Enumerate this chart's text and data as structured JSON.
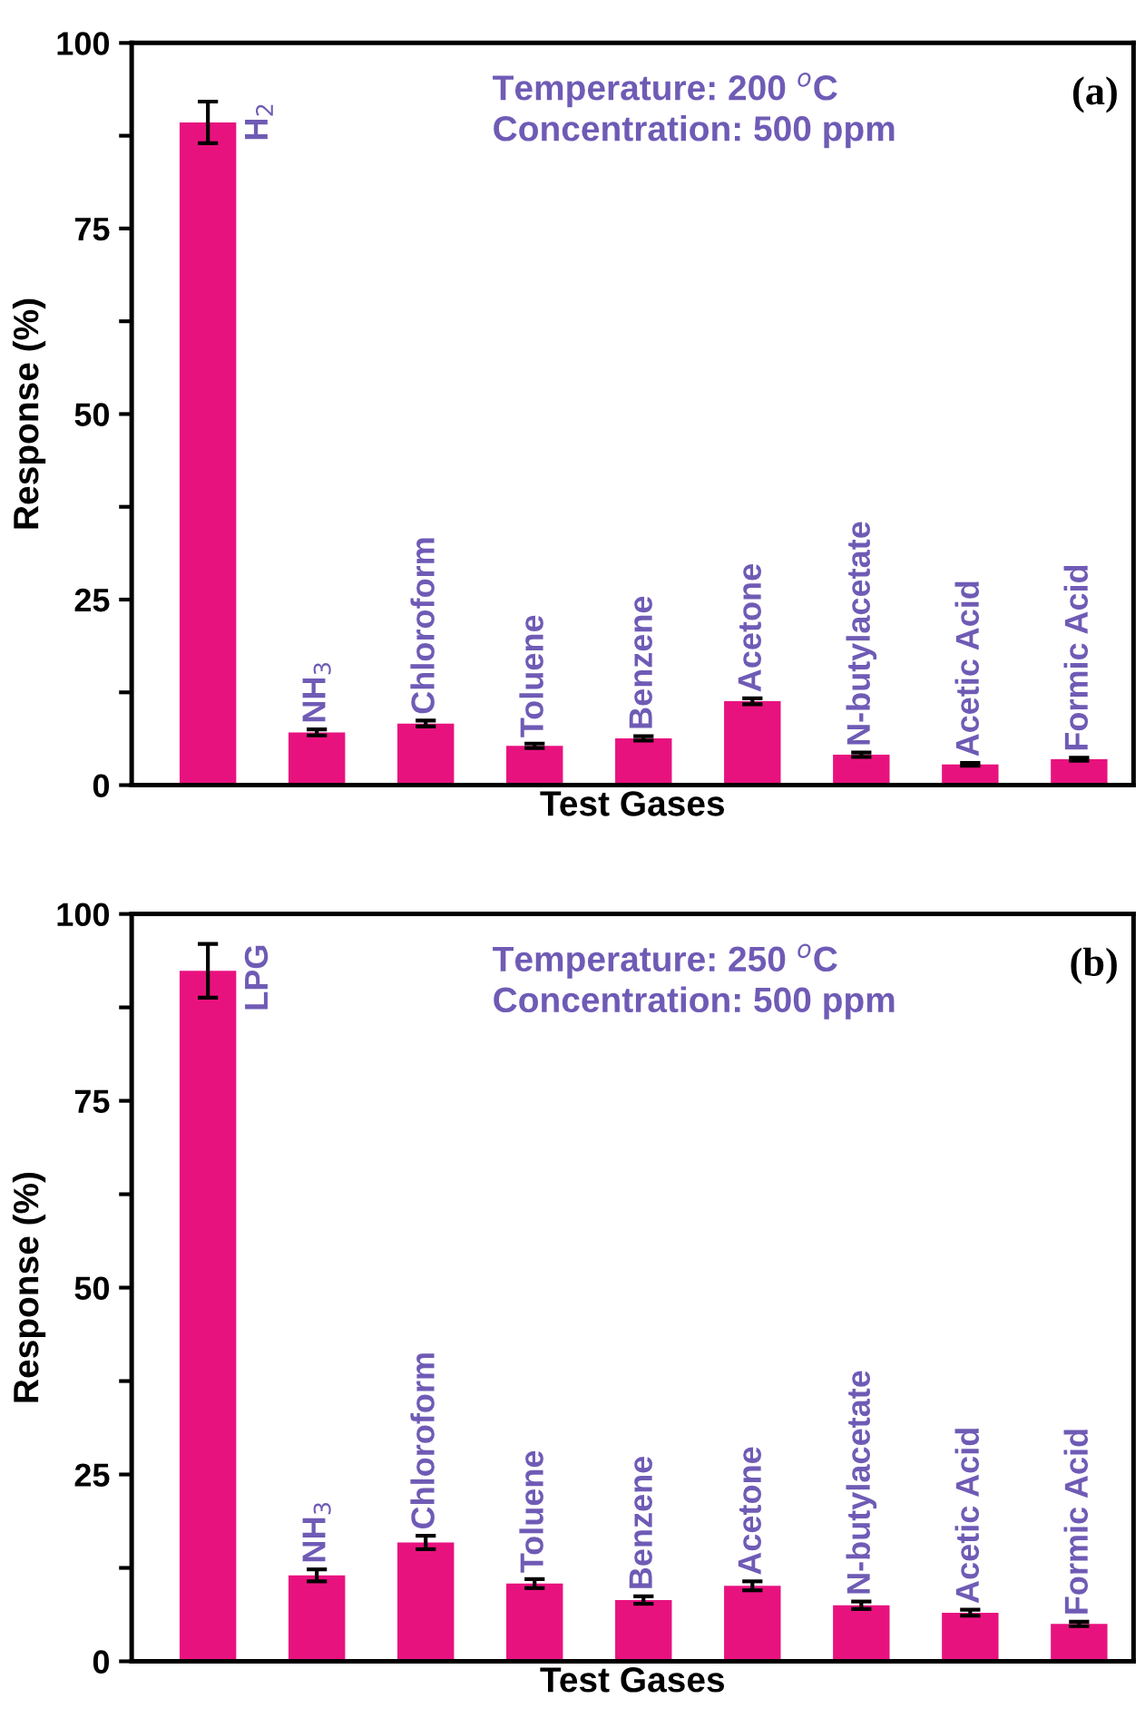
{
  "chart_data": [
    {
      "type": "bar",
      "xlabel": "Test Gases",
      "ylabel": "Response (%)",
      "categories": [
        "H$_{2}$",
        "NH$_{3}$",
        "Chloroform",
        "Toluene",
        "Benzene",
        "Acetone",
        "N-butylacetate",
        "Acetic Acid",
        "Formic Acid"
      ],
      "values": [
        89.3,
        7.1,
        8.3,
        5.3,
        6.3,
        11.3,
        4.1,
        2.8,
        3.5
      ],
      "errors": [
        2.8,
        0.4,
        0.4,
        0.3,
        0.3,
        0.4,
        0.3,
        0.2,
        0.2
      ],
      "color": "#e8127f",
      "ylim": [
        0,
        100
      ],
      "yticks": [
        0,
        {
          "value": 12.5,
          "label": null
        },
        25,
        {
          "value": 37.5,
          "label": null
        },
        50,
        {
          "value": 62.5,
          "label": null
        },
        75,
        {
          "value": 87.5,
          "label": null
        },
        100
      ],
      "annotations": [
        "Temperature: 200 $^{o}$C\nConcentration: 500 ppm",
        "(a)"
      ],
      "grid": false,
      "legend": false
    },
    {
      "type": "bar",
      "xlabel": "Test Gases",
      "ylabel": "Response (%)",
      "categories": [
        "LPG",
        "NH$_{3}$",
        "Chloroform",
        "Toluene",
        "Benzene",
        "Acetone",
        "N-butylacetate",
        "Acetic Acid",
        "Formic Acid"
      ],
      "values": [
        92.4,
        11.5,
        15.9,
        10.4,
        8.2,
        10.1,
        7.5,
        6.5,
        5.0
      ],
      "errors": [
        3.6,
        0.8,
        0.9,
        0.6,
        0.5,
        0.6,
        0.5,
        0.4,
        0.3
      ],
      "color": "#e8127f",
      "ylim": [
        0,
        100
      ],
      "yticks": [
        0,
        {
          "value": 12.5,
          "label": null
        },
        25,
        {
          "value": 37.5,
          "label": null
        },
        50,
        {
          "value": 62.5,
          "label": null
        },
        75,
        {
          "value": 87.5,
          "label": null
        },
        100
      ],
      "annotations": [
        "Temperature: 250 $^{o}$C\nConcentration: 500 ppm",
        "(b)"
      ],
      "grid": false,
      "legend": false
    }
  ]
}
